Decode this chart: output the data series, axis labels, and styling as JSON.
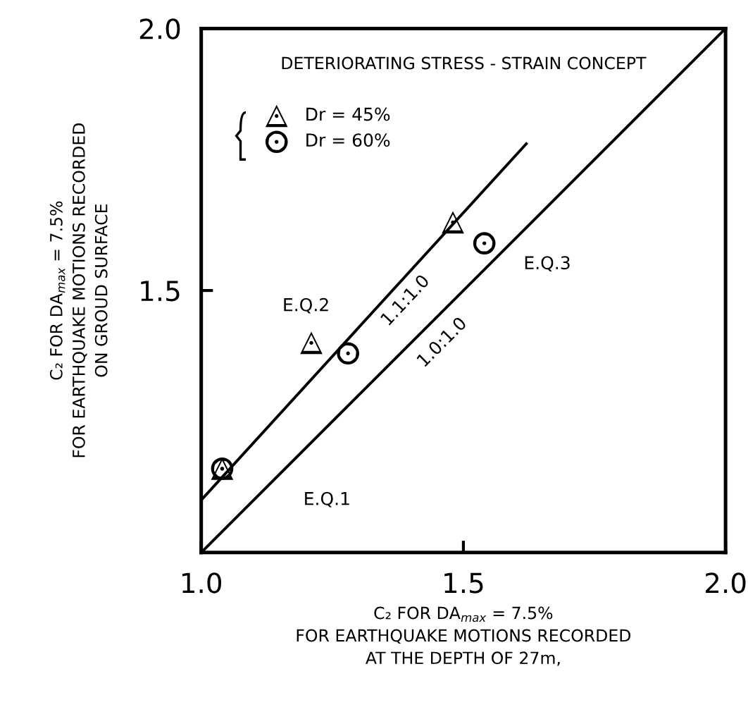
{
  "chart_data": {
    "type": "scatter",
    "title": "DETERIORATING STRESS - STRAIN CONCEPT",
    "xlabel": "C₂ FOR DA$_{max}$ = 7.5%\nFOR EARTHQUAKE MOTIONS RECORDED\nAT THE DEPTH OF 27m,",
    "ylabel": "C₂ FOR DA$_{max}$ = 7.5%\nFOR EARTHQUAKE MOTIONS RECORDED\nON GROUD SURFACE",
    "xlim": [
      1.0,
      2.0
    ],
    "ylim": [
      1.0,
      2.0
    ],
    "xticks": [
      {
        "value": 1.0,
        "label": "1.0"
      },
      1.5,
      {
        "value": 2.0,
        "label": "2.0"
      }
    ],
    "yticks": [
      1.5,
      {
        "value": 2.0,
        "label": "2.0"
      }
    ],
    "grid": false,
    "legend": "top left",
    "series": [
      {
        "name": "Dr = 45%",
        "marker": "triangle",
        "color": "#000000",
        "x": [
          1.04,
          1.21,
          1.48
        ],
        "values": [
          1.16,
          1.4,
          1.63
        ]
      },
      {
        "name": "Dr = 60%",
        "marker": "circle",
        "color": "#000000",
        "x": [
          1.04,
          1.28,
          1.54
        ],
        "values": [
          1.16,
          1.38,
          1.59
        ]
      },
      {
        "type": "line",
        "marker": "none",
        "line_style": "solid",
        "color": "#000000",
        "x": [
          1.0,
          1.62
        ],
        "values": [
          1.1,
          1.78
        ]
      },
      {
        "type": "line",
        "marker": "none",
        "line_style": "solid",
        "color": "#000000",
        "x": [
          1.0,
          2.0
        ],
        "values": [
          1.0,
          2.0
        ]
      }
    ],
    "annotations": [
      "E.Q.1",
      "E.Q.2",
      "E.Q.3",
      "1.1:1.0",
      "1.0:1.0"
    ]
  }
}
